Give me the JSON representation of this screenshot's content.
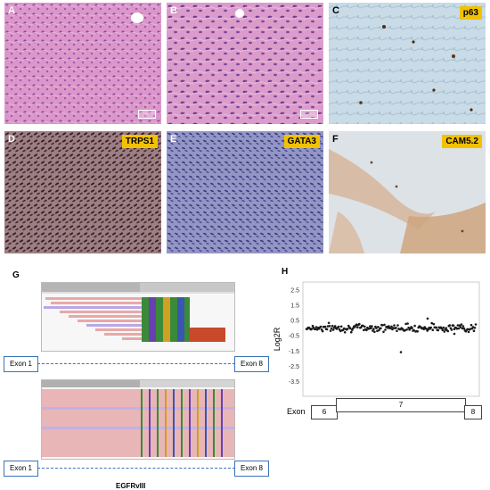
{
  "panels": {
    "A": {
      "label": "A"
    },
    "B": {
      "label": "B"
    },
    "C": {
      "label": "C",
      "marker": "p63"
    },
    "D": {
      "label": "D",
      "marker": "TRPS1"
    },
    "E": {
      "label": "E",
      "marker": "GATA3"
    },
    "F": {
      "label": "F",
      "marker": "CAM5.2"
    }
  },
  "panel_g": {
    "label": "G",
    "exon_left": "Exon 1",
    "exon_right": "Exon 8",
    "exon_left_2": "Exon 1",
    "exon_right_2": "Exon 8",
    "caption": "EGFRvIII"
  },
  "panel_h": {
    "label": "H",
    "ylabel": "Log2R",
    "yticks": [
      "2.5",
      "1.5",
      "0.5",
      "-0.5",
      "-1.5",
      "-2.5",
      "-3.5"
    ],
    "exon_label": "Exon",
    "exons": [
      "6",
      "7",
      "8"
    ]
  },
  "colors": {
    "he_pink": "#d98fc6",
    "ihc_blue": "#c9dbe6",
    "dab_brown": "#8b5a2b",
    "tag_yellow": "#f2c200",
    "exon_blue": "#3c72b8"
  },
  "chart_data": {
    "type": "scatter",
    "title": "",
    "xlabel": "",
    "ylabel": "Log2R",
    "ylim": [
      -4.5,
      3
    ],
    "yticks": [
      2.5,
      1.5,
      0.5,
      -0.5,
      -1.5,
      -2.5,
      -3.5
    ],
    "series": [
      {
        "description": "copy-number log2 ratios across EGFR exons 6-8",
        "y_mean": 0.0,
        "y_spread": 0.25,
        "outliers": [
          -1.6,
          0.6,
          -0.4
        ]
      }
    ]
  }
}
